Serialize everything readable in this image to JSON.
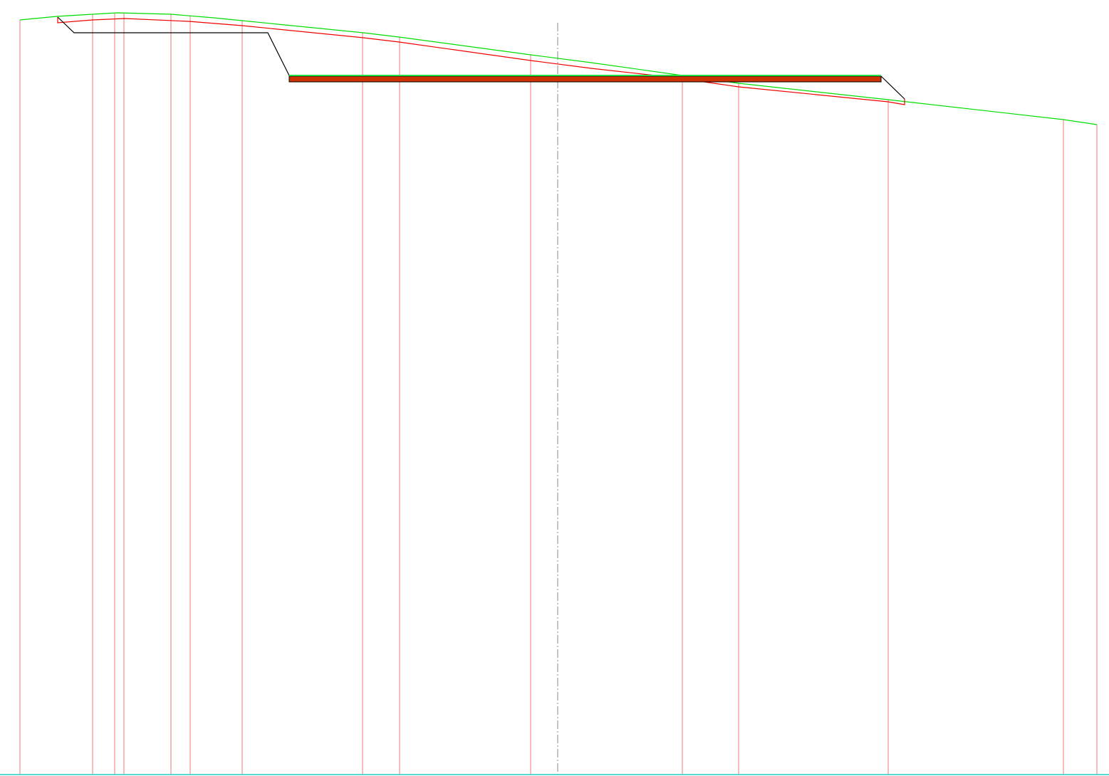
{
  "drawing": {
    "colors": {
      "background": "#ffffff",
      "ground_line": "#00dd00",
      "design_line": "#ee0000",
      "section_line": "#ee7777",
      "structure_outline": "#000000",
      "deck_fill": "#cc3300",
      "deck_top": "#22dd44",
      "centerline": "#888888",
      "baseline": "#22cccc"
    },
    "elements": [
      "ground-profile-line",
      "design-profile-line",
      "section-lines",
      "structure-outline",
      "deck-slab",
      "centerline-axis",
      "baseline"
    ]
  }
}
